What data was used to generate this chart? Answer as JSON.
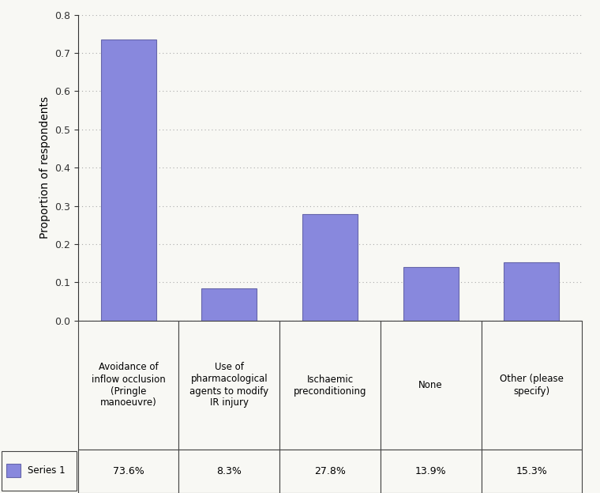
{
  "categories": [
    "Avoidance of\ninflow occlusion\n(Pringle\nmanoeuvre)",
    "Use of\npharmacological\nagents to modify\nIR injury",
    "Ischaemic\npreconditioning",
    "None",
    "Other (please\nspecify)"
  ],
  "values": [
    0.736,
    0.083,
    0.278,
    0.139,
    0.153
  ],
  "percentages": [
    "73.6%",
    "8.3%",
    "27.8%",
    "13.9%",
    "15.3%"
  ],
  "bar_color": "#8888dd",
  "bar_edge_color": "#6666aa",
  "ylabel": "Proportion of respondents",
  "ylim": [
    0,
    0.8
  ],
  "yticks": [
    0,
    0.1,
    0.2,
    0.3,
    0.4,
    0.5,
    0.6,
    0.7,
    0.8
  ],
  "legend_label": "Series 1",
  "legend_color": "#8888dd",
  "background_color": "#f8f8f4",
  "grid_color": "#aaaaaa",
  "bar_width": 0.55
}
